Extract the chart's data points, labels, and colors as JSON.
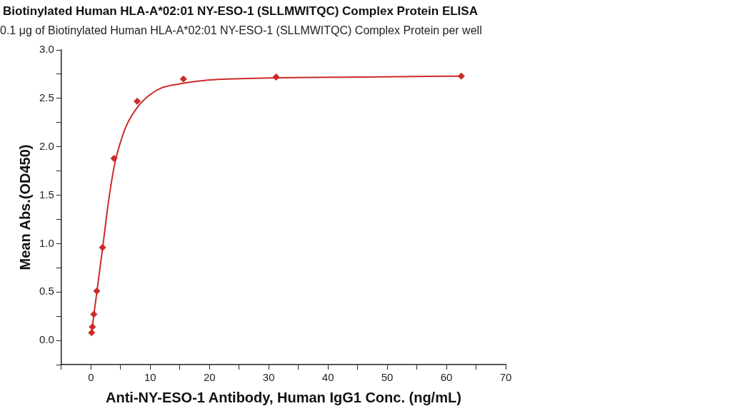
{
  "chart_data": {
    "type": "scatter",
    "title": "Biotinylated Human HLA-A*02:01 NY-ESO-1 (SLLMWITQC) Complex Protein ELISA",
    "subtitle": "0.1 μg of Biotinylated Human HLA-A*02:01 NY-ESO-1 (SLLMWITQC) Complex Protein per well",
    "xlabel": "Anti-NY-ESO-1 Antibody, Human IgG1 Conc. (ng/mL)",
    "ylabel": "Mean Abs.(OD450)",
    "series": [
      {
        "type": "scatter",
        "color": "#cc2a2a",
        "marker": "diamond",
        "x": [
          0.12,
          0.24,
          0.49,
          0.98,
          1.95,
          3.9,
          7.8,
          15.6,
          31.25,
          62.5
        ],
        "values": [
          0.08,
          0.14,
          0.27,
          0.51,
          0.96,
          1.88,
          2.47,
          2.7,
          2.72,
          2.73
        ]
      },
      {
        "type": "line",
        "color": "#cc2a2a",
        "marker": "none",
        "x": [
          0.12,
          0.5,
          1,
          2,
          3,
          4,
          5,
          6,
          8,
          10,
          12,
          15,
          20,
          30,
          45,
          62.5
        ],
        "values": [
          0.08,
          0.27,
          0.5,
          0.97,
          1.45,
          1.82,
          2.05,
          2.22,
          2.42,
          2.54,
          2.61,
          2.65,
          2.69,
          2.71,
          2.72,
          2.73
        ]
      }
    ],
    "xlim": [
      -5,
      70
    ],
    "ylim": [
      -0.25,
      3.0
    ],
    "xticks": [
      {
        "value": -5,
        "label": null
      },
      0,
      {
        "value": 5,
        "label": null
      },
      10,
      {
        "value": 15,
        "label": null
      },
      20,
      {
        "value": 25,
        "label": null
      },
      30,
      {
        "value": 35,
        "label": null
      },
      40,
      {
        "value": 45,
        "label": null
      },
      50,
      {
        "value": 55,
        "label": null
      },
      60,
      {
        "value": 65,
        "label": null
      },
      70
    ],
    "yticks": [
      {
        "value": -0.25,
        "label": null
      },
      {
        "value": 0,
        "label": "0.0"
      },
      {
        "value": 0.25,
        "label": null
      },
      {
        "value": 0.5,
        "label": "0.5"
      },
      {
        "value": 0.75,
        "label": null
      },
      {
        "value": 1,
        "label": "1.0"
      },
      {
        "value": 1.25,
        "label": null
      },
      {
        "value": 1.5,
        "label": "1.5"
      },
      {
        "value": 1.75,
        "label": null
      },
      {
        "value": 2,
        "label": "2.0"
      },
      {
        "value": 2.25,
        "label": null
      },
      {
        "value": 2.5,
        "label": "2.5"
      },
      {
        "value": 2.75,
        "label": null
      },
      {
        "value": 3,
        "label": "3.0"
      }
    ],
    "grid": false,
    "legend": false
  }
}
